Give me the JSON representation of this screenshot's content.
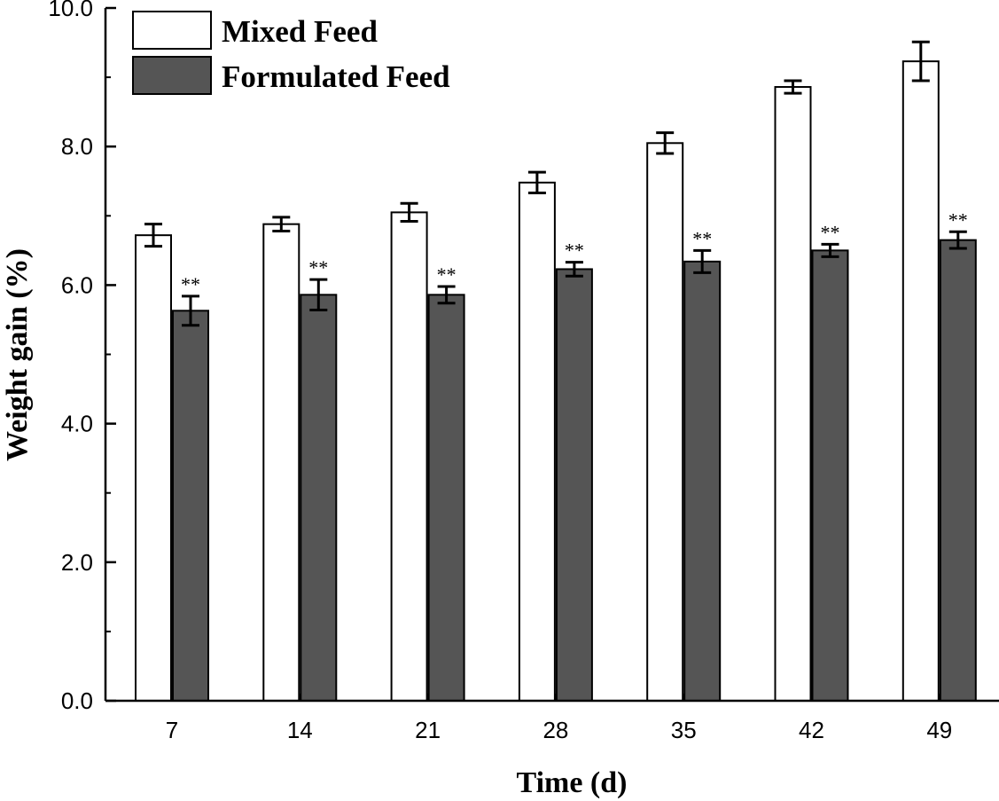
{
  "chart_data": {
    "type": "bar",
    "xlabel": "Time (d)",
    "ylabel": "Weight gain (%)",
    "categories": [
      "7",
      "14",
      "21",
      "28",
      "35",
      "42",
      "49"
    ],
    "ylim": [
      0,
      10
    ],
    "yticks": [
      "0.0",
      "2.0",
      "4.0",
      "6.0",
      "8.0",
      "10.0"
    ],
    "grid": false,
    "legend_position": "top-left",
    "series": [
      {
        "name": "Mixed Feed",
        "color": "#ffffff",
        "values": [
          6.72,
          6.88,
          7.05,
          7.48,
          8.05,
          8.86,
          9.23
        ],
        "errors": [
          0.16,
          0.1,
          0.13,
          0.15,
          0.15,
          0.09,
          0.28
        ]
      },
      {
        "name": "Formulated Feed",
        "color": "#555555",
        "values": [
          5.63,
          5.86,
          5.86,
          6.23,
          6.34,
          6.5,
          6.65
        ],
        "errors": [
          0.21,
          0.22,
          0.12,
          0.1,
          0.16,
          0.09,
          0.12
        ],
        "significance": [
          "**",
          "**",
          "**",
          "**",
          "**",
          "**",
          "**"
        ]
      }
    ]
  }
}
